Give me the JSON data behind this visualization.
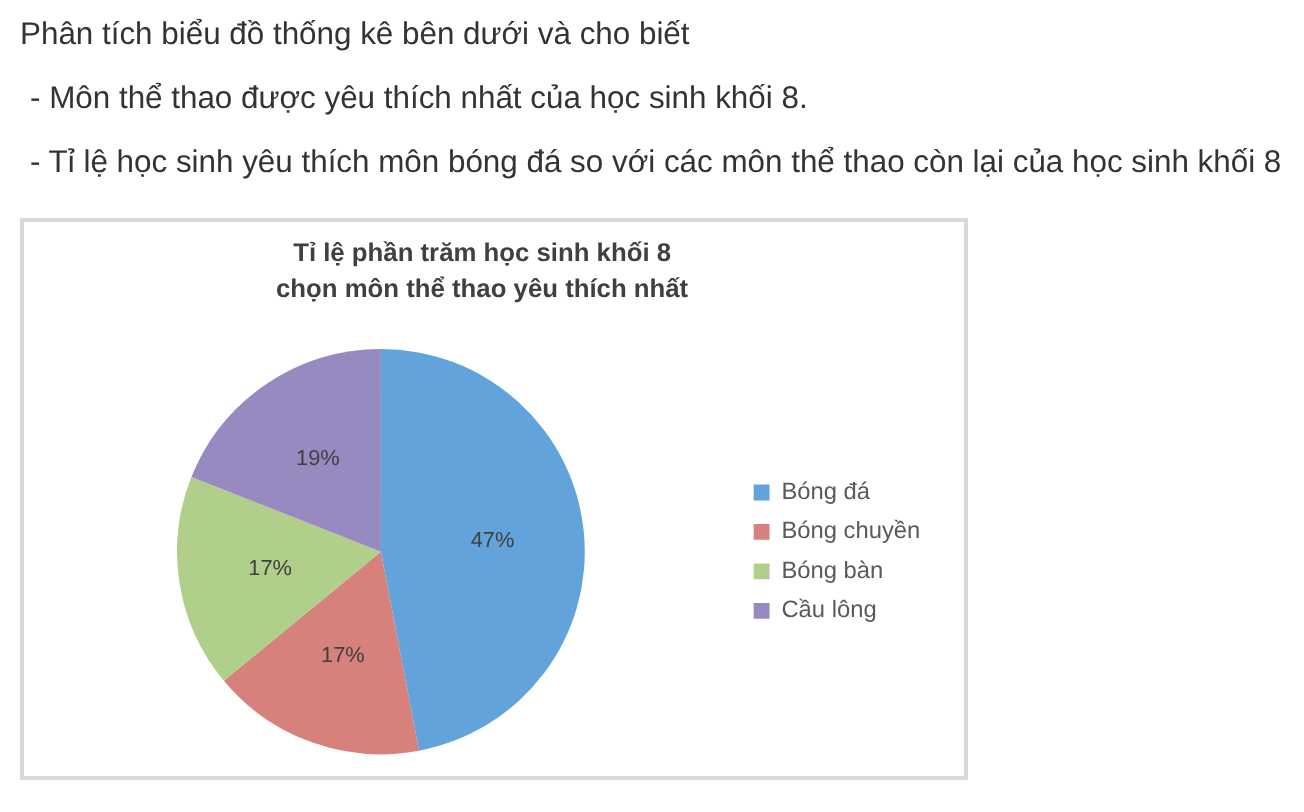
{
  "chart_data": {
    "type": "pie",
    "title": "Tỉ lệ phần trăm học sinh khối 8\nchọn môn thể thao yêu thích nhất",
    "annotations": [
      "Phân tích biểu đồ thống kê bên dưới và cho biết",
      "- Môn thể thao được yêu thích nhất của học sinh khối 8.",
      "- Tỉ lệ học sinh yêu thích môn bóng đá so với các môn thể thao còn lại của học sinh khối 8"
    ],
    "categories": [
      "Bóng đá",
      "Bóng chuyền",
      "Bóng bàn",
      "Cầu lông"
    ],
    "values": [
      47,
      17,
      17,
      19
    ],
    "colors": [
      "#62a3db",
      "#d6817c",
      "#afcf8a",
      "#978ac1"
    ],
    "value_labels": [
      "47%",
      "17%",
      "17%",
      "19%"
    ],
    "legend": "right"
  }
}
